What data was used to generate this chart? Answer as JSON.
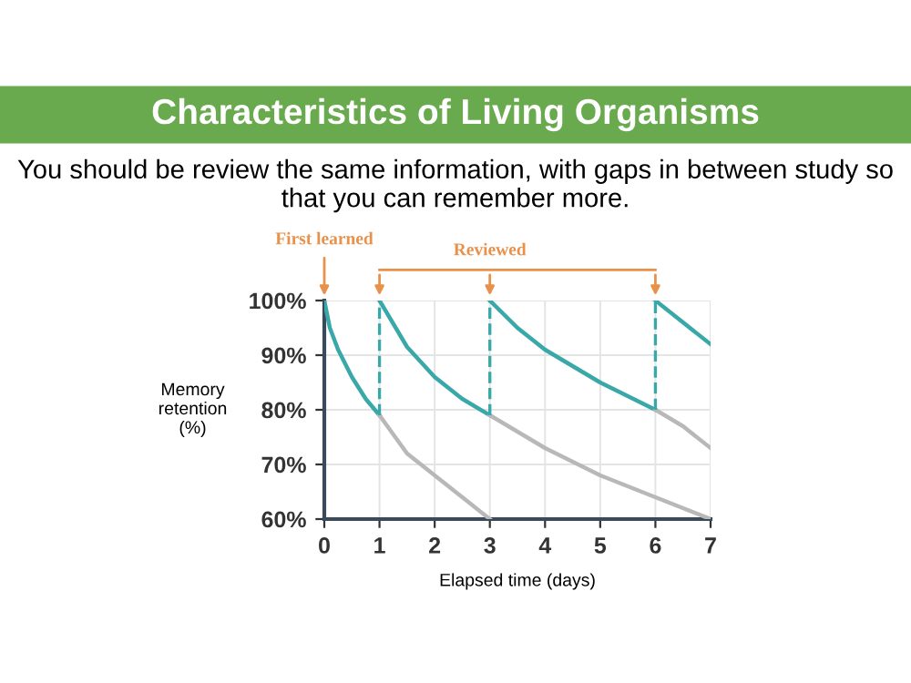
{
  "chart_data": {
    "type": "line",
    "title": "Characteristics of Living Organisms",
    "subtitle": "You should be review the same information, with gaps in between study so that you can remember more.",
    "xlabel": "Elapsed time (days)",
    "ylabel": "Memory\nretention\n(%)",
    "series": [
      {
        "color": "#3aa8a8",
        "x": [
          0,
          0.1,
          0.25,
          0.5,
          0.75,
          1
        ],
        "values": [
          100,
          95,
          91,
          86,
          82,
          79
        ]
      },
      {
        "color": "#b8b8b8",
        "x": [
          1,
          1.5,
          2,
          2.5,
          3
        ],
        "values": [
          79,
          72,
          68,
          64,
          60
        ]
      },
      {
        "color": "#3aa8a8",
        "x": [
          1,
          1.5,
          2,
          2.5,
          3
        ],
        "values": [
          100,
          91.5,
          86,
          82,
          79
        ]
      },
      {
        "color": "#b8b8b8",
        "x": [
          3,
          4,
          5,
          6,
          7
        ],
        "values": [
          79,
          73,
          68,
          64,
          60
        ]
      },
      {
        "color": "#3aa8a8",
        "x": [
          3,
          3.5,
          4,
          4.5,
          5,
          5.5,
          6
        ],
        "values": [
          100,
          95,
          91,
          88,
          85,
          82.5,
          80
        ]
      },
      {
        "color": "#b8b8b8",
        "x": [
          6,
          6.5,
          7
        ],
        "values": [
          80,
          77,
          73
        ]
      },
      {
        "color": "#3aa8a8",
        "x": [
          6,
          6.5,
          7
        ],
        "values": [
          100,
          96,
          92
        ]
      },
      {
        "color": "#3aa8a8",
        "line_style": "dashed",
        "x": [
          1,
          1
        ],
        "values": [
          79,
          100
        ]
      },
      {
        "color": "#3aa8a8",
        "line_style": "dashed",
        "x": [
          3,
          3
        ],
        "values": [
          79,
          100
        ]
      },
      {
        "color": "#3aa8a8",
        "line_style": "dashed",
        "x": [
          6,
          6
        ],
        "values": [
          80,
          100
        ]
      }
    ],
    "annotations": [
      {
        "text": "First learned",
        "x": 0,
        "y": 100
      },
      {
        "text": "Reviewed",
        "x": 3,
        "y": 100
      }
    ],
    "xlim": [
      0,
      7
    ],
    "xticks": [
      0,
      1,
      2,
      3,
      4,
      5,
      6,
      7
    ],
    "ylim": [
      60,
      100
    ],
    "yticks": [
      {
        "value": 60,
        "label": "60%"
      },
      {
        "value": 70,
        "label": "70%"
      },
      {
        "value": 80,
        "label": "80%"
      },
      {
        "value": 90,
        "label": "90%"
      },
      {
        "value": 100,
        "label": "100%"
      }
    ],
    "grid": true,
    "marker": "none",
    "line_style": "solid",
    "legend": false
  }
}
